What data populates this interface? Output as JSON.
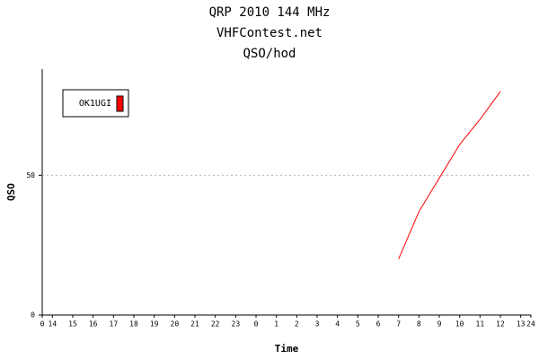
{
  "chart_data": {
    "type": "line",
    "title": "QRP 2010 144 MHz",
    "subtitle": "VHFContest.net",
    "chart_label": "QSO/hod",
    "x_label": "Time",
    "y_label": "QSO",
    "x": [
      17.5,
      18.5,
      19.5,
      20.5,
      21.5,
      22.5
    ],
    "series": [
      {
        "name": "OK1UGI",
        "color": "#ff0000",
        "values": [
          20,
          37,
          49,
          61,
          70,
          80
        ]
      }
    ],
    "xlim": [
      0,
      24
    ],
    "xticks": [
      0,
      {
        "value": 0.5,
        "label": "14"
      },
      {
        "value": 1.5,
        "label": "15"
      },
      {
        "value": 2.5,
        "label": "16"
      },
      {
        "value": 3.5,
        "label": "17"
      },
      {
        "value": 4.5,
        "label": "18"
      },
      {
        "value": 5.5,
        "label": "19"
      },
      {
        "value": 6.5,
        "label": "20"
      },
      {
        "value": 7.5,
        "label": "21"
      },
      {
        "value": 8.5,
        "label": "22"
      },
      {
        "value": 9.5,
        "label": "23"
      },
      {
        "value": 10.5,
        "label": "0"
      },
      {
        "value": 11.5,
        "label": "1"
      },
      {
        "value": 12.5,
        "label": "2"
      },
      {
        "value": 13.5,
        "label": "3"
      },
      {
        "value": 14.5,
        "label": "4"
      },
      {
        "value": 15.5,
        "label": "5"
      },
      {
        "value": 16.5,
        "label": "6"
      },
      {
        "value": 17.5,
        "label": "7"
      },
      {
        "value": 18.5,
        "label": "8"
      },
      {
        "value": 19.5,
        "label": "9"
      },
      {
        "value": 20.5,
        "label": "10"
      },
      {
        "value": 21.5,
        "label": "11"
      },
      {
        "value": 22.5,
        "label": "12"
      },
      {
        "value": 23.5,
        "label": "13"
      },
      24
    ],
    "ylim": [
      0,
      88
    ],
    "yticks": [
      0,
      50
    ],
    "grid": true,
    "legend": "upper-left"
  }
}
